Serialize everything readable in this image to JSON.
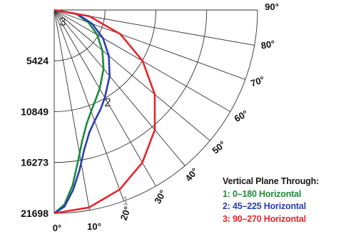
{
  "chart_data": {
    "type": "polar-line",
    "title": "",
    "radial_axis": {
      "ticks": [
        5424,
        10849,
        16273,
        21698
      ],
      "max": 21698
    },
    "angular_axis": {
      "ticks": [
        {
          "deg": 0,
          "label": "0°"
        },
        {
          "deg": 10,
          "label": "10°"
        },
        {
          "deg": 20,
          "label": "20°"
        },
        {
          "deg": 30,
          "label": "30°"
        },
        {
          "deg": 40,
          "label": "40°"
        },
        {
          "deg": 50,
          "label": "50°"
        },
        {
          "deg": 60,
          "label": "60°"
        },
        {
          "deg": 70,
          "label": "70°"
        },
        {
          "deg": 80,
          "label": "80°"
        },
        {
          "deg": 90,
          "label": "90°"
        }
      ]
    },
    "legend": {
      "title": "Vertical Plane Through:",
      "entries": [
        "1: 0–180 Horizontal",
        "2: 45–225 Horizontal",
        "3: 90–270 Horizontal"
      ]
    },
    "series": [
      {
        "label": "1",
        "color": "#1e8a3a",
        "points": [
          [
            0,
            21698
          ],
          [
            3,
            20800
          ],
          [
            6,
            18800
          ],
          [
            9,
            16300
          ],
          [
            12,
            14300
          ],
          [
            16,
            12600
          ],
          [
            20,
            11500
          ],
          [
            25,
            10500
          ],
          [
            30,
            9700
          ],
          [
            40,
            8200
          ],
          [
            50,
            6700
          ],
          [
            60,
            5300
          ],
          [
            70,
            3900
          ],
          [
            80,
            2400
          ],
          [
            90,
            0
          ]
        ]
      },
      {
        "label": "2",
        "color": "#2b3fb0",
        "points": [
          [
            0,
            21698
          ],
          [
            3,
            21000
          ],
          [
            6,
            19300
          ],
          [
            9,
            17300
          ],
          [
            12,
            15300
          ],
          [
            16,
            13600
          ],
          [
            20,
            12600
          ],
          [
            25,
            11700
          ],
          [
            30,
            10800
          ],
          [
            40,
            9200
          ],
          [
            50,
            7600
          ],
          [
            60,
            6000
          ],
          [
            70,
            4300
          ],
          [
            80,
            2500
          ],
          [
            90,
            0
          ]
        ]
      },
      {
        "label": "3",
        "color": "#e8252b",
        "points": [
          [
            0,
            21698
          ],
          [
            10,
            21400
          ],
          [
            20,
            20400
          ],
          [
            30,
            18800
          ],
          [
            40,
            16700
          ],
          [
            50,
            14000
          ],
          [
            60,
            10900
          ],
          [
            70,
            7500
          ],
          [
            80,
            3800
          ],
          [
            90,
            0
          ]
        ]
      }
    ]
  }
}
